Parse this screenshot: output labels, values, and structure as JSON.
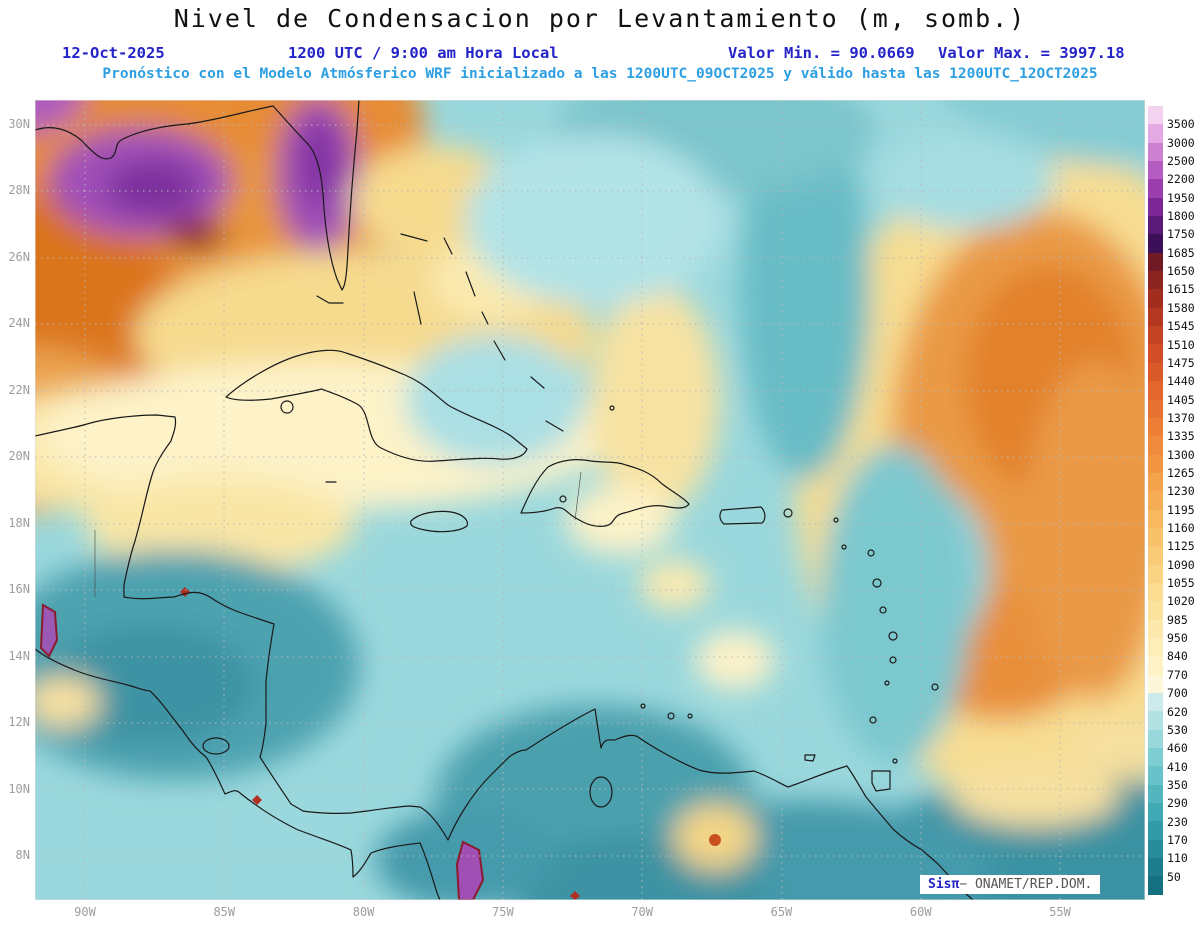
{
  "header": {
    "title": "Nivel de Condensacion por Levantamiento (m, somb.)",
    "date": "12-Oct-2025",
    "time_line": "1200 UTC / 9:00 am Hora Local",
    "valor_min": "Valor Min. = 90.0669",
    "valor_max": "Valor Max. = 3997.18",
    "forecast_line": "Pronóstico con el Modelo Atmósferico WRF inicializado a las 1200UTC_09OCT2025 y válido hasta las  1200UTC_12OCT2025",
    "accent_blue": "#2323c8",
    "accent_lightblue": "#2d9fe2"
  },
  "map": {
    "lat_ticks": [
      "30N",
      "28N",
      "26N",
      "24N",
      "22N",
      "20N",
      "18N",
      "16N",
      "14N",
      "12N",
      "10N",
      "8N"
    ],
    "lon_ticks": [
      "90W",
      "85W",
      "80W",
      "75W",
      "70W",
      "65W",
      "60W",
      "55W"
    ]
  },
  "chart_data": {
    "type": "heatmap",
    "title": "Nivel de Condensacion por Levantamiento (m, somb.)",
    "units": "m",
    "valid_date": "12-Oct-2025",
    "valid_time": "1200 UTC / 9:00 am Hora Local",
    "value_min": 90.0669,
    "value_max": 3997.18,
    "model": "WRF",
    "init": "1200UTC_09OCT2025",
    "valid_until": "1200UTC_12OCT2025",
    "lat_range": [
      "8N",
      "30N"
    ],
    "lon_range": [
      "90W",
      "55W"
    ],
    "legend_position": "right",
    "levels": [
      3500,
      3000,
      2500,
      2200,
      1950,
      1800,
      1750,
      1685,
      1650,
      1615,
      1580,
      1545,
      1510,
      1475,
      1440,
      1405,
      1370,
      1335,
      1300,
      1265,
      1230,
      1195,
      1160,
      1125,
      1090,
      1055,
      1020,
      985,
      950,
      840,
      770,
      700,
      620,
      530,
      460,
      410,
      350,
      290,
      230,
      170,
      110,
      50
    ]
  },
  "colorbar": {
    "levels": [
      "3500",
      "3000",
      "2500",
      "2200",
      "1950",
      "1800",
      "1750",
      "1685",
      "1650",
      "1615",
      "1580",
      "1545",
      "1510",
      "1475",
      "1440",
      "1405",
      "1370",
      "1335",
      "1300",
      "1265",
      "1230",
      "1195",
      "1160",
      "1125",
      "1090",
      "1055",
      "1020",
      "985",
      "950",
      "840",
      "770",
      "700",
      "620",
      "530",
      "460",
      "410",
      "350",
      "290",
      "230",
      "170",
      "110",
      "50"
    ],
    "colors": [
      "#f3d2f0",
      "#e2a9e2",
      "#cd7fd0",
      "#b55cc0",
      "#9c3dae",
      "#7c2796",
      "#5a1a78",
      "#3c1058",
      "#701a26",
      "#8c241f",
      "#a12d1f",
      "#b43821",
      "#c44325",
      "#d14e27",
      "#db5a2a",
      "#e2662e",
      "#e87231",
      "#ec7e36",
      "#f08a3c",
      "#f29643",
      "#f4a24b",
      "#f6ad55",
      "#f7b860",
      "#f8c26b",
      "#f9cb77",
      "#fad483",
      "#fbdc90",
      "#fce39d",
      "#fde9ab",
      "#fdeeb9",
      "#fef3c7",
      "#fdf6d9",
      "#cdeaea",
      "#b2e1e2",
      "#98d7da",
      "#7ecdd2",
      "#67c2c9",
      "#53b6bf",
      "#41a9b3",
      "#339ba7",
      "#278c9a",
      "#1d7d8c",
      "#14707e"
    ]
  },
  "attribution": {
    "brand": "Sisπ",
    "text": "− ONAMET/REP.DOM."
  }
}
